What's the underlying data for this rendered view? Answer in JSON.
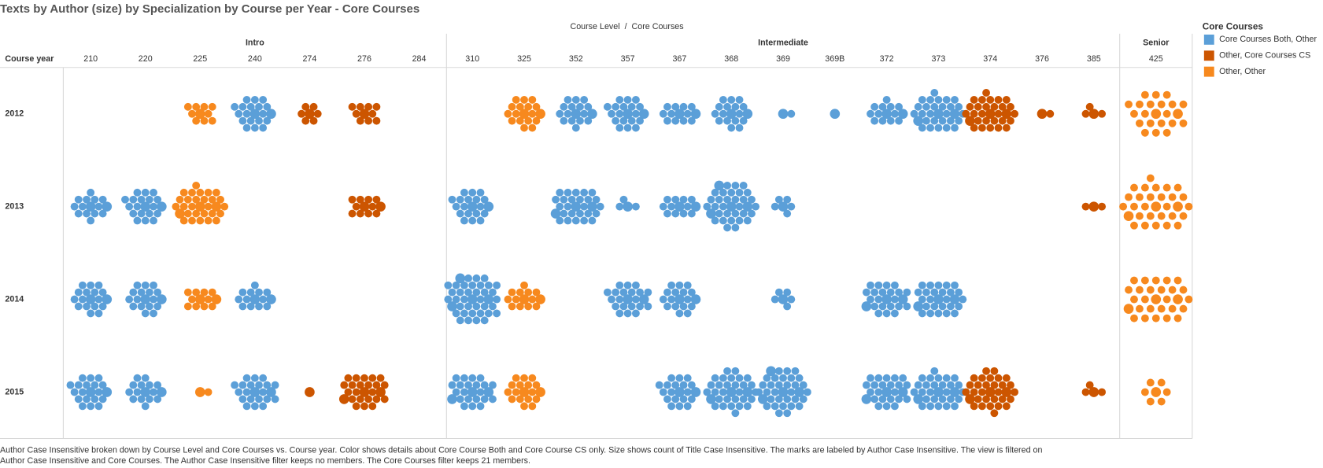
{
  "chart_data": {
    "type": "packed-bubble-grid",
    "title": "Texts by Author (size) by Specialization by Course per Year - Core Courses",
    "column_header": "Course Level  /  Core Courses",
    "row_header": "Course year",
    "groups": [
      {
        "name": "Intro",
        "courses": [
          "210",
          "220",
          "225",
          "240",
          "274",
          "276",
          "284"
        ]
      },
      {
        "name": "Intermediate",
        "courses": [
          "310",
          "325",
          "352",
          "357",
          "367",
          "368",
          "369",
          "369B",
          "372",
          "373",
          "374",
          "376",
          "385"
        ]
      },
      {
        "name": "Senior",
        "courses": [
          "425"
        ]
      }
    ],
    "years": [
      "2012",
      "2013",
      "2014",
      "2015"
    ],
    "legend": {
      "title": "Core Courses",
      "items": [
        {
          "label": "Core Courses Both, Other",
          "color": "#5b9fd8"
        },
        {
          "label": "Other, Core Courses CS",
          "color": "#cc5500"
        },
        {
          "label": "Other, Other",
          "color": "#f7891e"
        }
      ]
    },
    "cells": [
      {
        "year": "2012",
        "course": "225",
        "specialization": "Other, Other",
        "count": 10
      },
      {
        "year": "2012",
        "course": "240",
        "specialization": "Core Courses Both, Other",
        "count": 20
      },
      {
        "year": "2012",
        "course": "274",
        "specialization": "Other, Core Courses CS",
        "count": 7
      },
      {
        "year": "2012",
        "course": "276",
        "specialization": "Other, Core Courses CS",
        "count": 10
      },
      {
        "year": "2012",
        "course": "325",
        "specialization": "Other, Other",
        "count": 18
      },
      {
        "year": "2012",
        "course": "352",
        "specialization": "Core Courses Both, Other",
        "count": 17
      },
      {
        "year": "2012",
        "course": "357",
        "specialization": "Core Courses Both, Other",
        "count": 20
      },
      {
        "year": "2012",
        "course": "367",
        "specialization": "Core Courses Both, Other",
        "count": 13
      },
      {
        "year": "2012",
        "course": "368",
        "specialization": "Core Courses Both, Other",
        "count": 18
      },
      {
        "year": "2012",
        "course": "369",
        "specialization": "Core Courses Both, Other",
        "count": 2
      },
      {
        "year": "2012",
        "course": "369B",
        "specialization": "Core Courses Both, Other",
        "count": 1
      },
      {
        "year": "2012",
        "course": "372",
        "specialization": "Core Courses Both, Other",
        "count": 14
      },
      {
        "year": "2012",
        "course": "373",
        "specialization": "Core Courses Both, Other",
        "count": 30
      },
      {
        "year": "2012",
        "course": "374",
        "specialization": "Other, Core Courses CS",
        "count": 30
      },
      {
        "year": "2012",
        "course": "376",
        "specialization": "Other, Core Courses CS",
        "count": 2
      },
      {
        "year": "2012",
        "course": "385",
        "specialization": "Other, Core Courses CS",
        "count": 4
      },
      {
        "year": "2012",
        "course": "425",
        "specialization": "Other, Other",
        "count": 22
      },
      {
        "year": "2013",
        "course": "210",
        "specialization": "Core Courses Both, Other",
        "count": 15
      },
      {
        "year": "2013",
        "course": "220",
        "specialization": "Core Courses Both, Other",
        "count": 20
      },
      {
        "year": "2013",
        "course": "225",
        "specialization": "Other, Other",
        "count": 30
      },
      {
        "year": "2013",
        "course": "276",
        "specialization": "Other, Core Courses CS",
        "count": 12
      },
      {
        "year": "2013",
        "course": "310",
        "specialization": "Core Courses Both, Other",
        "count": 20
      },
      {
        "year": "2013",
        "course": "352",
        "specialization": "Core Courses Both, Other",
        "count": 28
      },
      {
        "year": "2013",
        "course": "357",
        "specialization": "Core Courses Both, Other",
        "count": 4
      },
      {
        "year": "2013",
        "course": "367",
        "specialization": "Core Courses Both, Other",
        "count": 13
      },
      {
        "year": "2013",
        "course": "368",
        "specialization": "Core Courses Both, Other",
        "count": 35
      },
      {
        "year": "2013",
        "course": "369",
        "specialization": "Core Courses Both, Other",
        "count": 6
      },
      {
        "year": "2013",
        "course": "385",
        "specialization": "Other, Core Courses CS",
        "count": 3
      },
      {
        "year": "2013",
        "course": "425",
        "specialization": "Other, Other",
        "count": 30
      },
      {
        "year": "2014",
        "course": "210",
        "specialization": "Core Courses Both, Other",
        "count": 18
      },
      {
        "year": "2014",
        "course": "220",
        "specialization": "Core Courses Both, Other",
        "count": 18
      },
      {
        "year": "2014",
        "course": "225",
        "specialization": "Other, Other",
        "count": 12
      },
      {
        "year": "2014",
        "course": "240",
        "specialization": "Core Courses Both, Other",
        "count": 14
      },
      {
        "year": "2014",
        "course": "310",
        "specialization": "Core Courses Both, Other",
        "count": 40
      },
      {
        "year": "2014",
        "course": "325",
        "specialization": "Other, Other",
        "count": 14
      },
      {
        "year": "2014",
        "course": "357",
        "specialization": "Core Courses Both, Other",
        "count": 22
      },
      {
        "year": "2014",
        "course": "367",
        "specialization": "Core Courses Both, Other",
        "count": 18
      },
      {
        "year": "2014",
        "course": "369",
        "specialization": "Core Courses Both, Other",
        "count": 6
      },
      {
        "year": "2014",
        "course": "372",
        "specialization": "Core Courses Both, Other",
        "count": 24
      },
      {
        "year": "2014",
        "course": "373",
        "specialization": "Core Courses Both, Other",
        "count": 28
      },
      {
        "year": "2014",
        "course": "425",
        "specialization": "Other, Other",
        "count": 28
      },
      {
        "year": "2015",
        "course": "210",
        "specialization": "Core Courses Both, Other",
        "count": 20
      },
      {
        "year": "2015",
        "course": "220",
        "specialization": "Core Courses Both, Other",
        "count": 16
      },
      {
        "year": "2015",
        "course": "225",
        "specialization": "Other, Other",
        "count": 2
      },
      {
        "year": "2015",
        "course": "240",
        "specialization": "Core Courses Both, Other",
        "count": 22
      },
      {
        "year": "2015",
        "course": "274",
        "specialization": "Other, Core Courses CS",
        "count": 1
      },
      {
        "year": "2015",
        "course": "276",
        "specialization": "Other, Core Courses CS",
        "count": 25
      },
      {
        "year": "2015",
        "course": "310",
        "specialization": "Core Courses Both, Other",
        "count": 24
      },
      {
        "year": "2015",
        "course": "325",
        "specialization": "Other, Other",
        "count": 18
      },
      {
        "year": "2015",
        "course": "367",
        "specialization": "Core Courses Both, Other",
        "count": 20
      },
      {
        "year": "2015",
        "course": "368",
        "specialization": "Core Courses Both, Other",
        "count": 32
      },
      {
        "year": "2015",
        "course": "369",
        "specialization": "Core Courses Both, Other",
        "count": 35
      },
      {
        "year": "2015",
        "course": "372",
        "specialization": "Core Courses Both, Other",
        "count": 25
      },
      {
        "year": "2015",
        "course": "373",
        "specialization": "Core Courses Both, Other",
        "count": 30
      },
      {
        "year": "2015",
        "course": "374",
        "specialization": "Other, Core Courses CS",
        "count": 32
      },
      {
        "year": "2015",
        "course": "385",
        "specialization": "Other, Core Courses CS",
        "count": 4
      },
      {
        "year": "2015",
        "course": "425",
        "specialization": "Other, Other",
        "count": 7
      }
    ],
    "caption": [
      "Author Case Insensitive broken down by Course Level and Core Courses vs. Course year.  Color shows details about Core Course Both and Core Course CS only.  Size shows count of Title Case Insensitive.  The marks are labeled by Author Case Insensitive. The view is filtered on",
      "Author Case Insensitive and Core Courses. The Author Case Insensitive filter keeps no members. The Core Courses filter keeps 21 members."
    ]
  }
}
